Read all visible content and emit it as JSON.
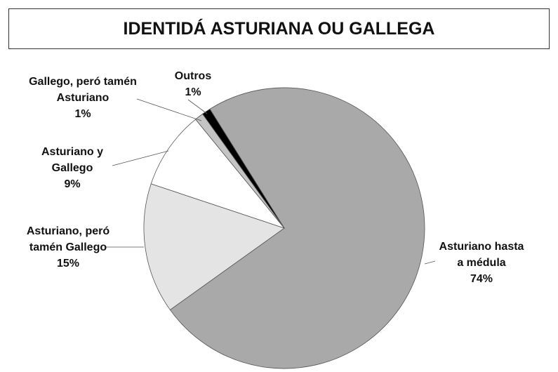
{
  "chart_data": {
    "type": "pie",
    "title": "IDENTIDÁ ASTURIANA OU GALLEGA",
    "categories": [
      "Asturiano hasta a médula",
      "Asturiano, peró tamén Gallego",
      "Asturiano y Gallego",
      "Gallego, peró tamén Asturiano",
      "Outros"
    ],
    "values": [
      74,
      15,
      9,
      1,
      1
    ],
    "value_labels": [
      "74%",
      "15%",
      "9%",
      "1%",
      "1%"
    ],
    "colors": [
      "#a9a9a9",
      "#e4e4e4",
      "#ffffff",
      "#c4c4c4",
      "#000000"
    ]
  }
}
